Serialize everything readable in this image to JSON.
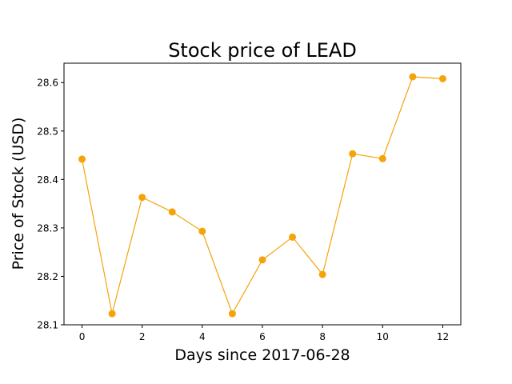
{
  "chart_data": {
    "type": "line",
    "title": "Stock price of LEAD",
    "xlabel": "Days since 2017-06-28",
    "ylabel": "Price of Stock (USD)",
    "x": [
      0,
      1,
      2,
      3,
      4,
      5,
      6,
      7,
      8,
      9,
      10,
      11,
      12
    ],
    "series": [
      {
        "values": [
          28.442,
          28.123,
          28.363,
          28.333,
          28.293,
          28.123,
          28.234,
          28.281,
          28.204,
          28.453,
          28.443,
          28.612,
          28.608
        ],
        "color": "#f5a30a"
      }
    ],
    "xlim": [
      -0.6,
      12.6
    ],
    "ylim": [
      28.1,
      28.64
    ],
    "xticks": [
      0,
      2,
      4,
      6,
      8,
      10,
      12
    ],
    "yticks": [
      28.1,
      28.2,
      28.3,
      28.4,
      28.5,
      28.6
    ],
    "grid": false,
    "legend": "none"
  }
}
